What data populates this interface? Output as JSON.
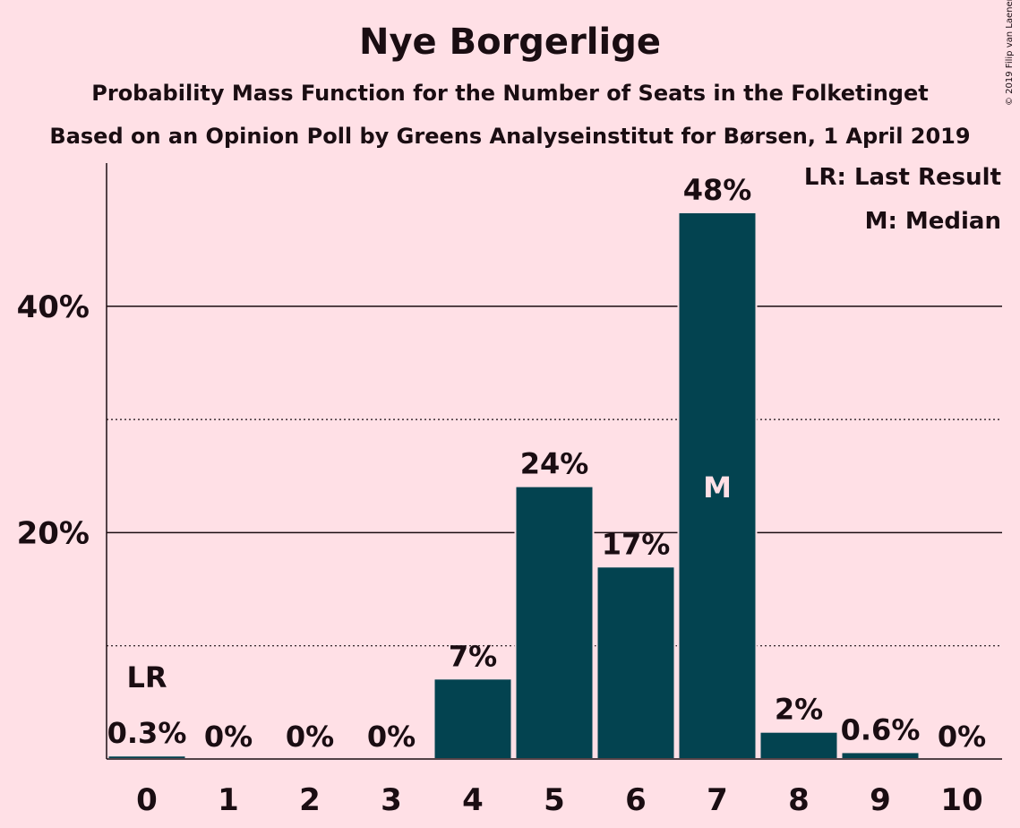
{
  "chart_data": {
    "type": "bar",
    "title": "Nye Borgerlige",
    "subtitle": "Probability Mass Function for the Number of Seats in the Folketinget",
    "subtitle2": "Based on an Opinion Poll by Greens Analyseinstitut for Børsen, 1 April 2019",
    "copyright": "© 2019 Filip van Laenen",
    "categories": [
      "0",
      "1",
      "2",
      "3",
      "4",
      "5",
      "6",
      "7",
      "8",
      "9",
      "10"
    ],
    "values": [
      0.3,
      0,
      0,
      0,
      7.1,
      24.1,
      17.0,
      48.3,
      2.4,
      0.6,
      0
    ],
    "data_labels": [
      "0.3%",
      "0%",
      "0%",
      "0%",
      "7%",
      "24%",
      "17%",
      "48%",
      "2%",
      "0.6%",
      "0%"
    ],
    "y_ticks": [
      20,
      40
    ],
    "y_tick_labels": [
      "20%",
      "40%"
    ],
    "minor_gridlines": [
      10,
      30
    ],
    "ylim": [
      0,
      52.5
    ],
    "last_result_index": 0,
    "last_result_label": "LR",
    "median_index": 7,
    "median_label": "M",
    "legend": [
      "LR: Last Result",
      "M: Median"
    ],
    "legend_position": "top-right",
    "bar_color": "#034350",
    "background_color": "#ffe0e6"
  }
}
